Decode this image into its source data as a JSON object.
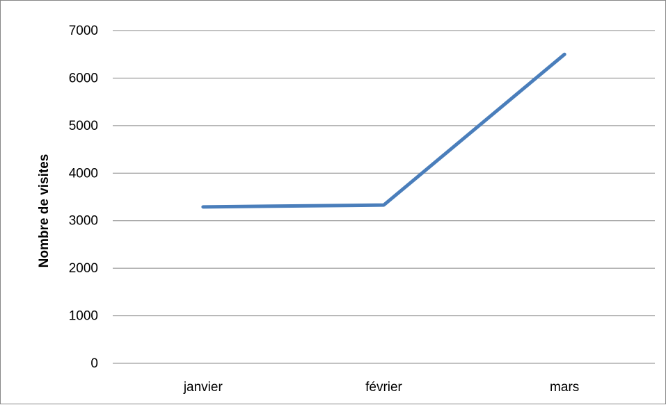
{
  "chart_data": {
    "type": "line",
    "title": "",
    "xlabel": "",
    "ylabel": "Nombre de visites",
    "categories": [
      "janvier",
      "février",
      "mars"
    ],
    "series": [
      {
        "values": [
          3290,
          3330,
          6500
        ],
        "color": "#4a7ebb"
      }
    ],
    "ylim": [
      0,
      7000
    ],
    "y_ticks": [
      0,
      1000,
      2000,
      3000,
      4000,
      5000,
      6000,
      7000
    ],
    "grid": "horizontal",
    "legend": "none"
  }
}
